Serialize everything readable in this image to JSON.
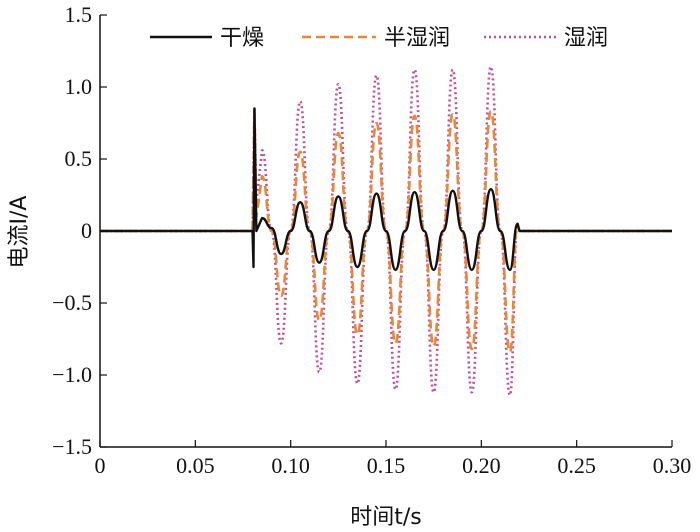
{
  "chart_data": {
    "type": "line",
    "xlabel": "时间t/s",
    "ylabel": "电流I/A",
    "xlim": [
      0,
      0.3
    ],
    "ylim": [
      -1.5,
      1.5
    ],
    "x_ticks": [
      0,
      0.05,
      0.1,
      0.15,
      0.2,
      0.25,
      0.3
    ],
    "x_tick_labels": [
      "0",
      "0.05",
      "0.10",
      "0.15",
      "0.20",
      "0.25",
      "0.30"
    ],
    "y_ticks": [
      1.5,
      1.0,
      0.5,
      0,
      -0.5,
      -1.0,
      -1.5
    ],
    "y_tick_labels": [
      "1.5",
      "1.0",
      "0.5",
      "0",
      "−0.5",
      "−1.0",
      "−1.5"
    ],
    "grid": false,
    "legend_position": "top",
    "legend": [
      "干燥",
      "半湿润",
      "湿润"
    ],
    "series": [
      {
        "name": "干燥",
        "color": "#111111",
        "style": "solid",
        "x": [
          0,
          0.08,
          0.0805,
          0.081,
          0.082,
          0.085,
          0.09,
          0.095,
          0.1,
          0.105,
          0.11,
          0.115,
          0.12,
          0.125,
          0.13,
          0.135,
          0.14,
          0.145,
          0.15,
          0.155,
          0.16,
          0.165,
          0.17,
          0.175,
          0.18,
          0.185,
          0.19,
          0.195,
          0.2,
          0.205,
          0.21,
          0.215,
          0.219,
          0.22,
          0.3
        ],
        "y": [
          0,
          0,
          -0.25,
          0.85,
          0.0,
          0.09,
          0.02,
          -0.16,
          0.0,
          0.2,
          0.0,
          -0.22,
          0.0,
          0.24,
          0.0,
          -0.25,
          0.0,
          0.26,
          0.0,
          -0.27,
          0.0,
          0.27,
          0.0,
          -0.27,
          0.0,
          0.28,
          0.0,
          -0.27,
          0.0,
          0.29,
          0.0,
          -0.27,
          0.05,
          0,
          0
        ]
      },
      {
        "name": "半湿润",
        "color": "#e8873a",
        "style": "dashed",
        "x": [
          0,
          0.08,
          0.081,
          0.082,
          0.085,
          0.09,
          0.095,
          0.1,
          0.105,
          0.11,
          0.115,
          0.12,
          0.125,
          0.13,
          0.135,
          0.14,
          0.145,
          0.15,
          0.155,
          0.16,
          0.165,
          0.17,
          0.175,
          0.18,
          0.185,
          0.19,
          0.195,
          0.2,
          0.205,
          0.21,
          0.215,
          0.219,
          0.22,
          0.3
        ],
        "y": [
          0,
          0,
          0.85,
          0.1,
          0.38,
          0.0,
          -0.45,
          0.0,
          0.55,
          0.0,
          -0.62,
          0.0,
          0.68,
          0.0,
          -0.72,
          0.0,
          0.75,
          0.0,
          -0.78,
          0.0,
          0.8,
          0.0,
          -0.8,
          0.0,
          0.81,
          0.0,
          -0.82,
          0.0,
          0.83,
          0.0,
          -0.84,
          0.05,
          0,
          0
        ]
      },
      {
        "name": "湿润",
        "color": "#c04f9e",
        "style": "dotted",
        "x": [
          0,
          0.08,
          0.081,
          0.082,
          0.085,
          0.09,
          0.095,
          0.1,
          0.105,
          0.11,
          0.115,
          0.12,
          0.125,
          0.13,
          0.135,
          0.14,
          0.145,
          0.15,
          0.155,
          0.16,
          0.165,
          0.17,
          0.175,
          0.18,
          0.185,
          0.19,
          0.195,
          0.2,
          0.205,
          0.21,
          0.215,
          0.219,
          0.22,
          0.3
        ],
        "y": [
          0,
          0,
          0.85,
          0.2,
          0.56,
          0.0,
          -0.78,
          0.0,
          0.9,
          0.0,
          -0.98,
          0.0,
          1.02,
          0.0,
          -1.06,
          0.0,
          1.08,
          0.0,
          -1.1,
          0.0,
          1.12,
          0.0,
          -1.12,
          0.0,
          1.12,
          0.0,
          -1.12,
          0.0,
          1.14,
          0.0,
          -1.14,
          0.05,
          0,
          0
        ]
      }
    ]
  }
}
